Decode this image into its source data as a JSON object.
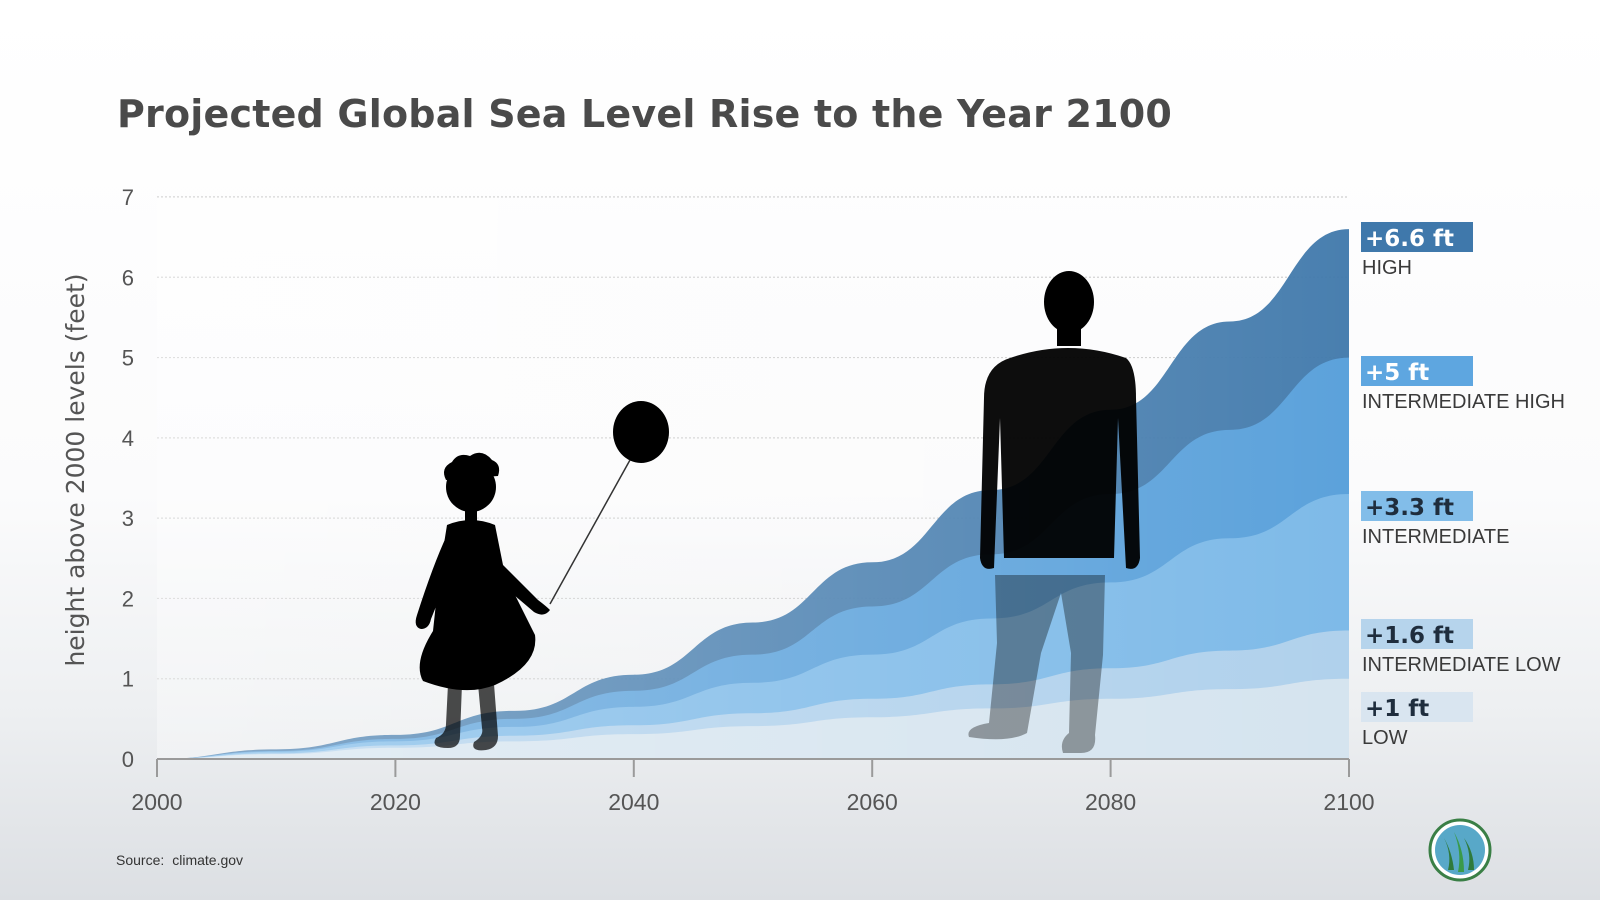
{
  "source": {
    "label": "Source:",
    "value": "climate.gov"
  },
  "colors": {
    "high": "#3f78ab",
    "intermediate_high": "#5ea6e0",
    "intermediate": "#82bde9",
    "intermediate_low": "#b6d4ec",
    "low": "#d9e5f0",
    "axis": "#9a9a9a",
    "grid": "#cfcfcf"
  },
  "icons": [
    "child-with-balloon-silhouette",
    "adult-silhouette",
    "agency-logo-icon"
  ],
  "chart_data": {
    "type": "area",
    "title": "Projected Global Sea Level Rise to the Year 2100",
    "xlabel": "",
    "ylabel": "height above 2000 levels (feet)",
    "xlim": [
      2000,
      2100
    ],
    "ylim": [
      0,
      7
    ],
    "x_ticks": [
      2000,
      2020,
      2040,
      2060,
      2080,
      2100
    ],
    "y_ticks": [
      0,
      1,
      2,
      3,
      4,
      5,
      6,
      7
    ],
    "grid": true,
    "x": [
      2000,
      2010,
      2020,
      2030,
      2040,
      2050,
      2060,
      2070,
      2080,
      2090,
      2100
    ],
    "series": [
      {
        "name": "HIGH",
        "end_label": "+6.6 ft",
        "values": [
          0,
          0.12,
          0.3,
          0.6,
          1.05,
          1.7,
          2.45,
          3.35,
          4.35,
          5.45,
          6.6
        ]
      },
      {
        "name": "INTERMEDIATE HIGH",
        "end_label": "+5 ft",
        "values": [
          0,
          0.1,
          0.25,
          0.5,
          0.85,
          1.3,
          1.9,
          2.55,
          3.3,
          4.1,
          5.0
        ]
      },
      {
        "name": "INTERMEDIATE",
        "end_label": "+3.3 ft",
        "values": [
          0,
          0.09,
          0.22,
          0.4,
          0.65,
          0.95,
          1.3,
          1.75,
          2.2,
          2.75,
          3.3
        ]
      },
      {
        "name": "INTERMEDIATE LOW",
        "end_label": "+1.6 ft",
        "values": [
          0,
          0.07,
          0.17,
          0.29,
          0.42,
          0.57,
          0.75,
          0.93,
          1.13,
          1.35,
          1.6
        ]
      },
      {
        "name": "LOW",
        "end_label": "+1 ft",
        "values": [
          0,
          0.06,
          0.14,
          0.22,
          0.31,
          0.41,
          0.52,
          0.63,
          0.75,
          0.87,
          1.0
        ]
      }
    ]
  }
}
